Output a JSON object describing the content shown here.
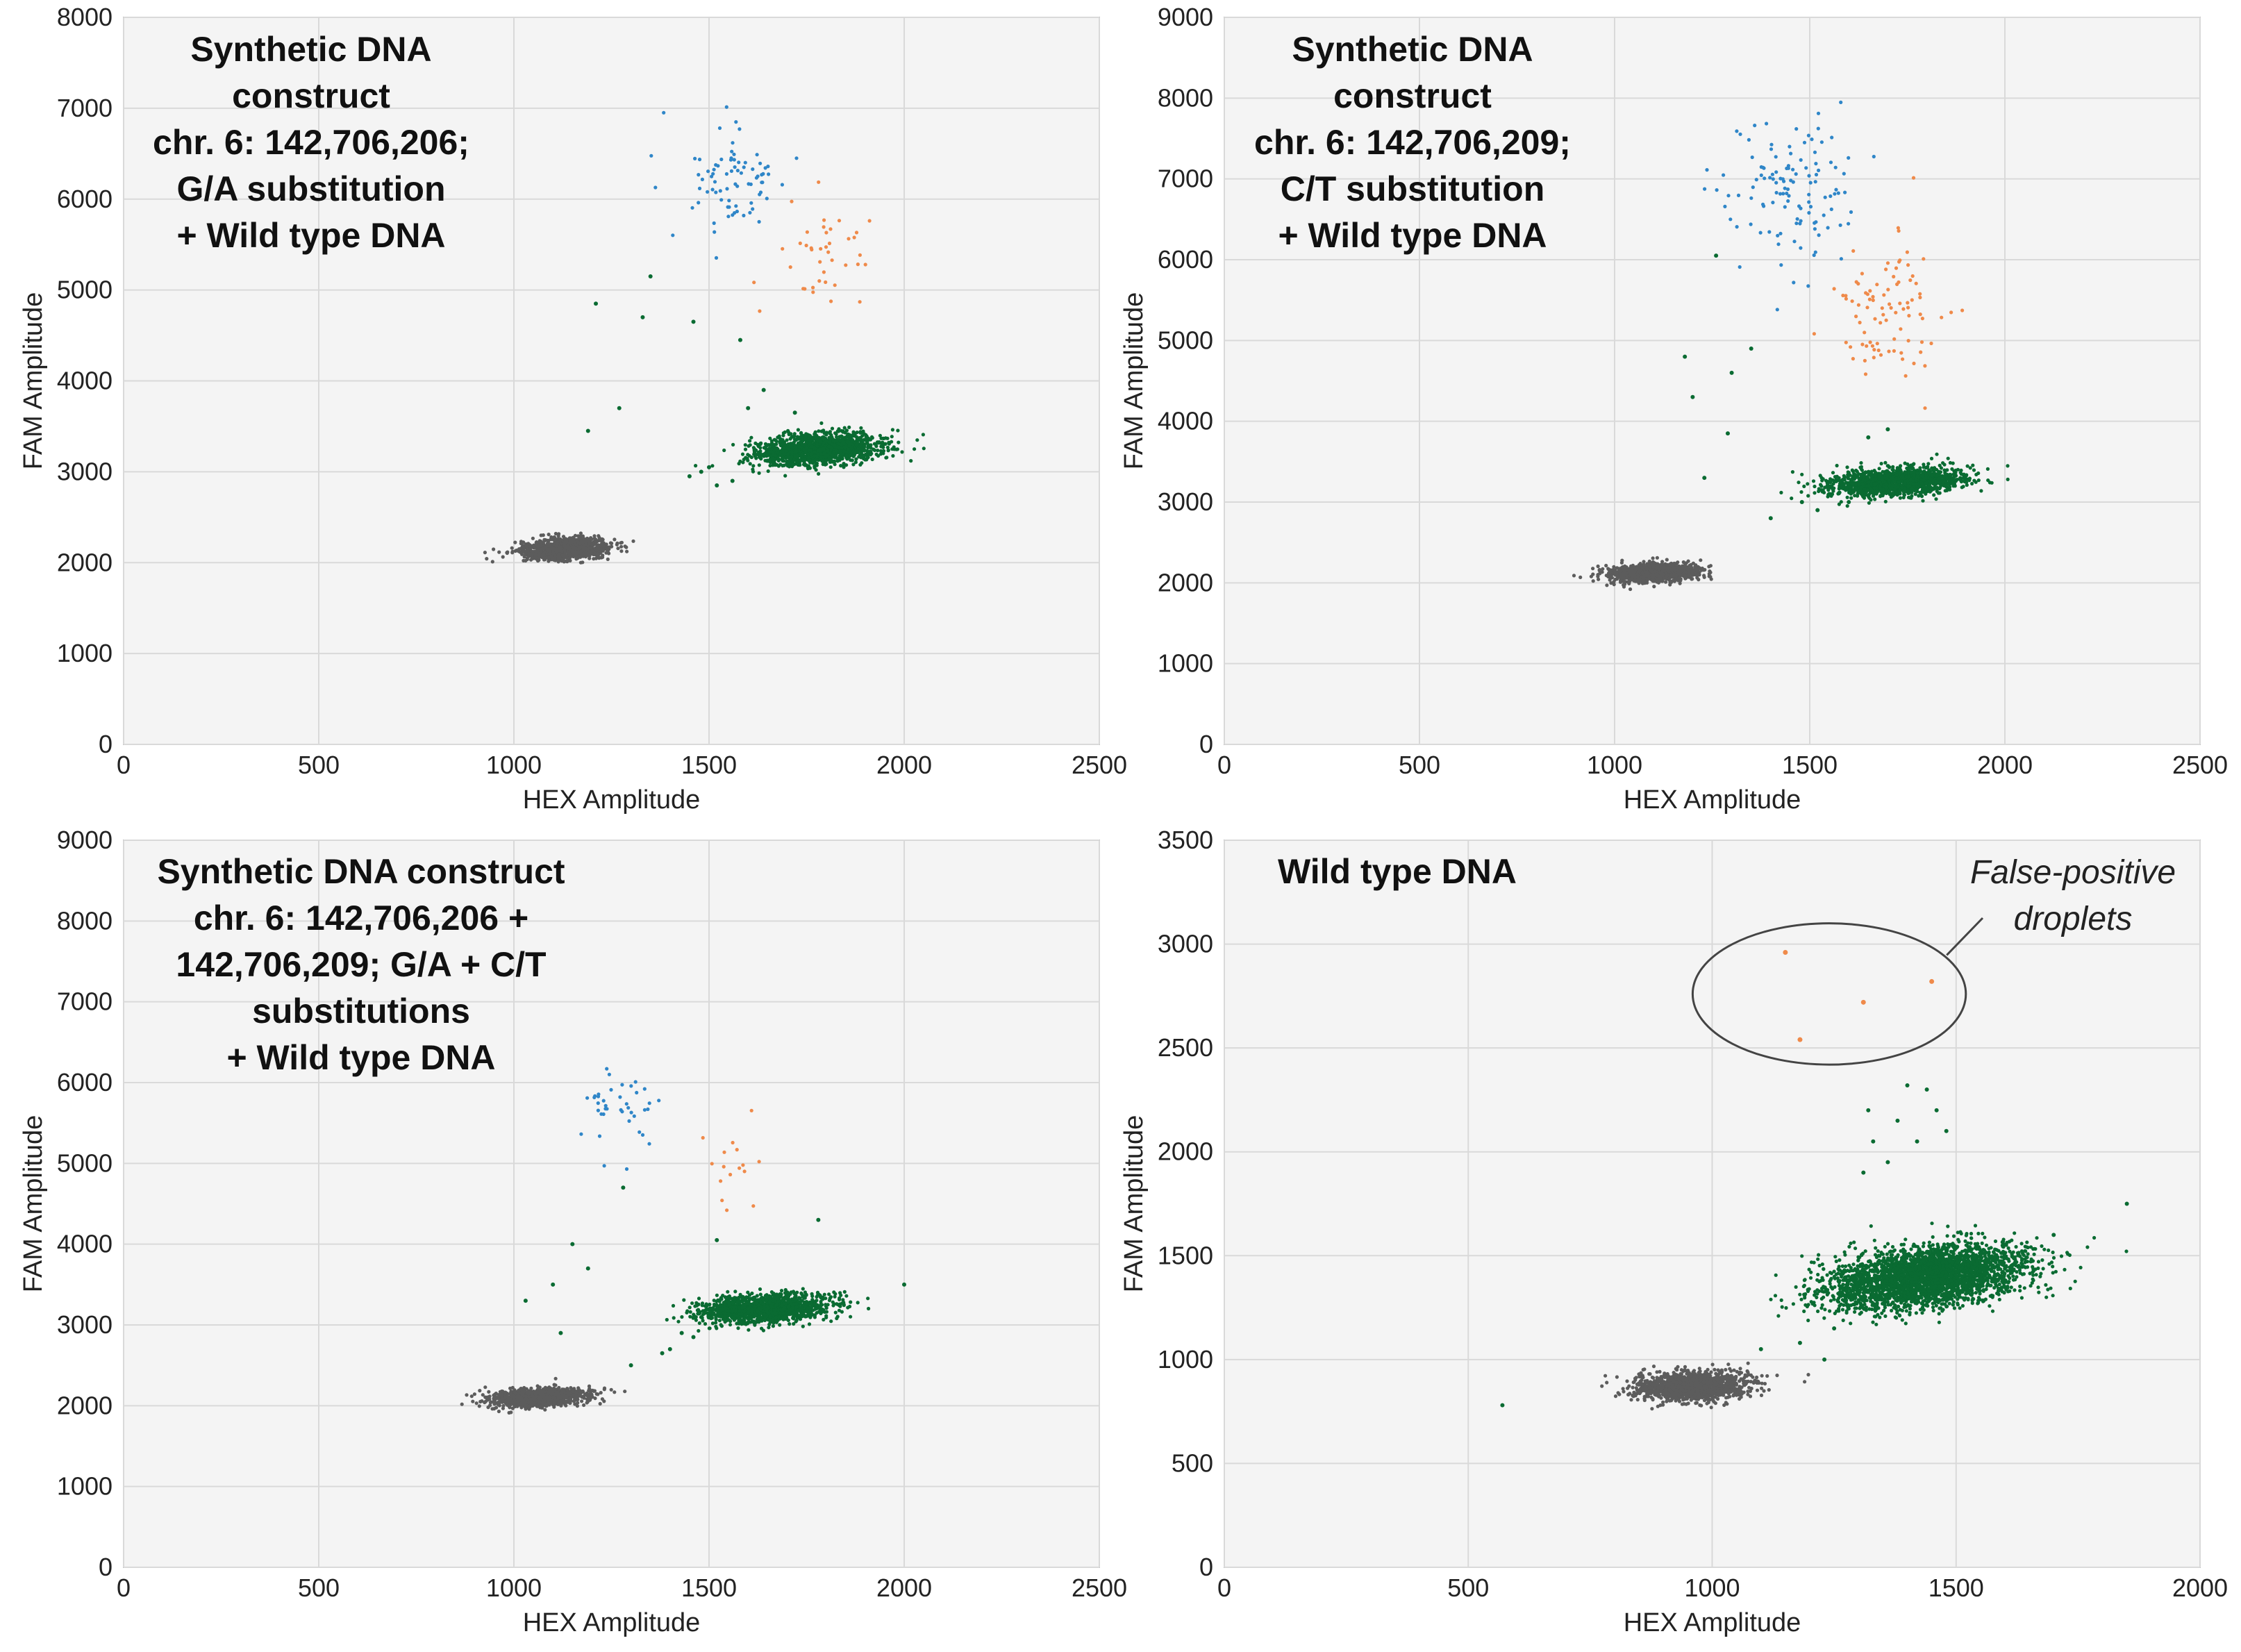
{
  "colors": {
    "plot_background": "#f4f4f4",
    "grid": "#d9d9d9",
    "negative_cluster": "#5c5c5c",
    "hex_positive_cluster": "#0a6b32",
    "fam_positive_cluster": "#2f86c8",
    "double_positive_cluster": "#ef8a4a",
    "axis_text": "#222222",
    "annotation_ellipse": "#444444"
  },
  "chart_data": [
    {
      "type": "scatter",
      "annotation": [
        "Synthetic DNA",
        "construct",
        "chr. 6: 142,706,206;",
        "G/A substitution",
        "+ Wild type DNA"
      ],
      "xlabel": "HEX Amplitude",
      "ylabel": "FAM Amplitude",
      "xlim": [
        0,
        2500
      ],
      "ylim": [
        0,
        8000
      ],
      "x_ticks": [
        "0",
        "500",
        "1000",
        "1500",
        "2000",
        "2500"
      ],
      "y_ticks": [
        "0",
        "1000",
        "2000",
        "3000",
        "4000",
        "5000",
        "6000",
        "7000",
        "8000"
      ],
      "grid": true,
      "clusters": [
        {
          "color_key": "negative_cluster",
          "center": [
            1130,
            2150
          ],
          "spread": [
            55,
            55
          ],
          "count": 1200,
          "tilt": 0.2
        },
        {
          "color_key": "hex_positive_cluster",
          "center": [
            1780,
            3250
          ],
          "spread": [
            80,
            85
          ],
          "count": 1500,
          "tilt": 0.3
        },
        {
          "color_key": "fam_positive_cluster",
          "center": [
            1550,
            6200
          ],
          "spread": [
            70,
            300
          ],
          "count": 80,
          "tilt": 0
        },
        {
          "color_key": "double_positive_cluster",
          "center": [
            1800,
            5300
          ],
          "spread": [
            75,
            350
          ],
          "count": 40,
          "tilt": 0
        }
      ],
      "scattered_points": [
        [
          1350,
          5150
        ],
        [
          1210,
          4850
        ],
        [
          1330,
          4700
        ],
        [
          1270,
          3700
        ],
        [
          1190,
          3450
        ],
        [
          1460,
          4650
        ],
        [
          1580,
          4450
        ],
        [
          1450,
          2950
        ],
        [
          1520,
          2850
        ],
        [
          1480,
          3000
        ],
        [
          1560,
          2900
        ],
        [
          1500,
          3050
        ],
        [
          1600,
          3700
        ],
        [
          1640,
          3900
        ],
        [
          1720,
          3650
        ]
      ]
    },
    {
      "type": "scatter",
      "annotation": [
        "Synthetic DNA",
        "construct",
        "chr. 6: 142,706,209;",
        "C/T substitution",
        "+ Wild type DNA"
      ],
      "xlabel": "HEX Amplitude",
      "ylabel": "FAM Amplitude",
      "xlim": [
        0,
        2500
      ],
      "ylim": [
        0,
        9000
      ],
      "x_ticks": [
        "0",
        "500",
        "1000",
        "1500",
        "2000",
        "2500"
      ],
      "y_ticks": [
        "0",
        "1000",
        "2000",
        "3000",
        "4000",
        "5000",
        "6000",
        "7000",
        "8000",
        "9000"
      ],
      "grid": true,
      "clusters": [
        {
          "color_key": "negative_cluster",
          "center": [
            1100,
            2130
          ],
          "spread": [
            55,
            55
          ],
          "count": 1200,
          "tilt": 0.2
        },
        {
          "color_key": "hex_positive_cluster",
          "center": [
            1720,
            3250
          ],
          "spread": [
            85,
            85
          ],
          "count": 1500,
          "tilt": 0.3
        },
        {
          "color_key": "fam_positive_cluster",
          "center": [
            1450,
            6800
          ],
          "spread": [
            90,
            450
          ],
          "count": 120,
          "tilt": 0
        },
        {
          "color_key": "double_positive_cluster",
          "center": [
            1700,
            5400
          ],
          "spread": [
            75,
            450
          ],
          "count": 90,
          "tilt": 0
        }
      ],
      "scattered_points": [
        [
          1260,
          6050
        ],
        [
          1180,
          4800
        ],
        [
          1200,
          4300
        ],
        [
          1290,
          3850
        ],
        [
          1230,
          3300
        ],
        [
          1300,
          4600
        ],
        [
          1350,
          4900
        ],
        [
          1550,
          3100
        ],
        [
          1480,
          3000
        ],
        [
          1520,
          2900
        ],
        [
          1600,
          3000
        ],
        [
          1400,
          2800
        ],
        [
          1650,
          3800
        ],
        [
          1700,
          3900
        ]
      ]
    },
    {
      "type": "scatter",
      "annotation": [
        "Synthetic DNA construct",
        "chr. 6: 142,706,206 +",
        "142,706,209; G/A + C/T",
        "substitutions",
        "+ Wild type DNA"
      ],
      "xlabel": "HEX Amplitude",
      "ylabel": "FAM Amplitude",
      "xlim": [
        0,
        2500
      ],
      "ylim": [
        0,
        9000
      ],
      "x_ticks": [
        "0",
        "500",
        "1000",
        "1500",
        "2000",
        "2500"
      ],
      "y_ticks": [
        "0",
        "1000",
        "2000",
        "3000",
        "4000",
        "5000",
        "6000",
        "7000",
        "8000",
        "9000"
      ],
      "grid": true,
      "clusters": [
        {
          "color_key": "negative_cluster",
          "center": [
            1060,
            2100
          ],
          "spread": [
            60,
            55
          ],
          "count": 1300,
          "tilt": 0.2
        },
        {
          "color_key": "hex_positive_cluster",
          "center": [
            1640,
            3200
          ],
          "spread": [
            85,
            85
          ],
          "count": 1400,
          "tilt": 0.3
        },
        {
          "color_key": "fam_positive_cluster",
          "center": [
            1270,
            5600
          ],
          "spread": [
            55,
            280
          ],
          "count": 40,
          "tilt": 0
        },
        {
          "color_key": "double_positive_cluster",
          "center": [
            1560,
            5100
          ],
          "spread": [
            40,
            400
          ],
          "count": 16,
          "tilt": 0
        }
      ],
      "scattered_points": [
        [
          1150,
          4000
        ],
        [
          1190,
          3700
        ],
        [
          1100,
          3500
        ],
        [
          1030,
          3300
        ],
        [
          1120,
          2900
        ],
        [
          1300,
          2500
        ],
        [
          1280,
          4700
        ],
        [
          1430,
          2900
        ],
        [
          1400,
          2700
        ],
        [
          1460,
          2850
        ],
        [
          1380,
          2650
        ],
        [
          1780,
          4300
        ],
        [
          2000,
          3500
        ],
        [
          1520,
          4050
        ]
      ]
    },
    {
      "type": "scatter",
      "annotation": [
        "Wild type DNA"
      ],
      "callout": [
        "False-positive",
        "droplets"
      ],
      "xlabel": "HEX Amplitude",
      "ylabel": "FAM Amplitude",
      "xlim": [
        0,
        2000
      ],
      "ylim": [
        0,
        3500
      ],
      "x_ticks": [
        "0",
        "500",
        "1000",
        "1500",
        "2000"
      ],
      "y_ticks": [
        "0",
        "500",
        "1000",
        "1500",
        "2000",
        "2500",
        "3000",
        "3500"
      ],
      "grid": true,
      "clusters": [
        {
          "color_key": "negative_cluster",
          "center": [
            960,
            870
          ],
          "spread": [
            60,
            35
          ],
          "count": 1300,
          "tilt": 0.15
        },
        {
          "color_key": "hex_positive_cluster",
          "center": [
            1440,
            1400
          ],
          "spread": [
            100,
            70
          ],
          "count": 3200,
          "tilt": 0.35
        }
      ],
      "scattered_points": [
        [
          1320,
          2200
        ],
        [
          1380,
          2150
        ],
        [
          1420,
          2050
        ],
        [
          1360,
          1950
        ],
        [
          1440,
          2300
        ],
        [
          1330,
          2050
        ],
        [
          1480,
          2100
        ],
        [
          1400,
          2320
        ],
        [
          1460,
          2200
        ],
        [
          1310,
          1900
        ],
        [
          570,
          780
        ],
        [
          1850,
          1750
        ],
        [
          1700,
          1600
        ],
        [
          1100,
          1050
        ],
        [
          1230,
          1000
        ],
        [
          1180,
          1080
        ],
        [
          1250,
          1150
        ]
      ],
      "false_positive_points": [
        [
          1150,
          2960
        ],
        [
          1310,
          2720
        ],
        [
          1180,
          2540
        ],
        [
          1450,
          2820
        ]
      ],
      "ellipse_center": [
        1240,
        2760
      ],
      "ellipse_radii": [
        280,
        340
      ]
    }
  ]
}
